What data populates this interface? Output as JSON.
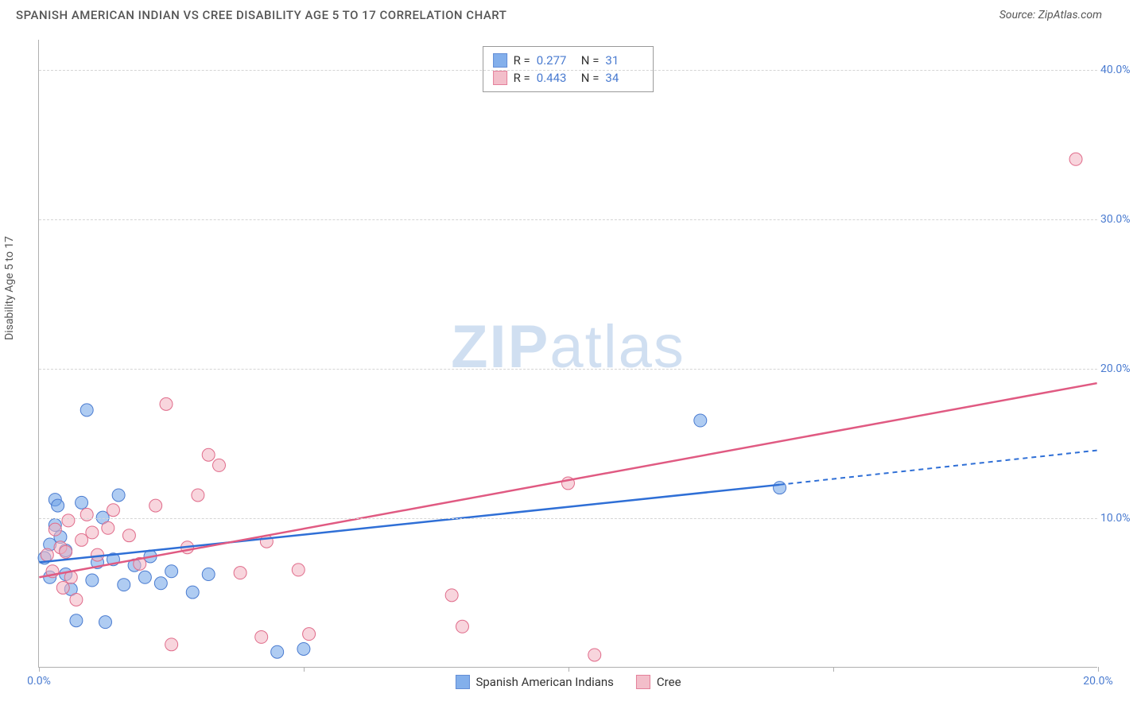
{
  "header": {
    "title": "SPANISH AMERICAN INDIAN VS CREE DISABILITY AGE 5 TO 17 CORRELATION CHART",
    "source": "Source: ZipAtlas.com"
  },
  "watermark": {
    "zip": "ZIP",
    "atlas": "atlas"
  },
  "chart": {
    "type": "scatter",
    "y_axis_label": "Disability Age 5 to 17",
    "background_color": "#ffffff",
    "grid_color": "#d5d5d5",
    "axis_color": "#b0b0b0",
    "tick_label_color": "#4a7bd0",
    "xlim": [
      0,
      20
    ],
    "ylim": [
      0,
      42
    ],
    "x_ticks": [
      0,
      5,
      10,
      15,
      20
    ],
    "x_tick_labels": [
      "0.0%",
      "",
      "",
      "",
      "20.0%"
    ],
    "y_ticks": [
      10,
      20,
      30,
      40
    ],
    "y_tick_labels": [
      "10.0%",
      "20.0%",
      "30.0%",
      "40.0%"
    ],
    "marker_radius": 8,
    "marker_opacity": 0.55,
    "line_width": 2.5,
    "series": [
      {
        "name": "Spanish American Indians",
        "color": "#6ea2e8",
        "stroke": "#4a7bd0",
        "line_color": "#2f6fd6",
        "R": "0.277",
        "N": "31",
        "points": [
          [
            0.1,
            7.3
          ],
          [
            0.2,
            6.0
          ],
          [
            0.2,
            8.2
          ],
          [
            0.3,
            11.2
          ],
          [
            0.3,
            9.5
          ],
          [
            0.35,
            10.8
          ],
          [
            0.4,
            8.7
          ],
          [
            0.5,
            6.2
          ],
          [
            0.5,
            7.8
          ],
          [
            0.6,
            5.2
          ],
          [
            0.7,
            3.1
          ],
          [
            0.8,
            11.0
          ],
          [
            0.9,
            17.2
          ],
          [
            1.0,
            5.8
          ],
          [
            1.1,
            7.0
          ],
          [
            1.2,
            10.0
          ],
          [
            1.25,
            3.0
          ],
          [
            1.4,
            7.2
          ],
          [
            1.5,
            11.5
          ],
          [
            1.6,
            5.5
          ],
          [
            1.8,
            6.8
          ],
          [
            2.0,
            6.0
          ],
          [
            2.1,
            7.4
          ],
          [
            2.3,
            5.6
          ],
          [
            2.5,
            6.4
          ],
          [
            2.9,
            5.0
          ],
          [
            3.2,
            6.2
          ],
          [
            4.5,
            1.0
          ],
          [
            5.0,
            1.2
          ],
          [
            12.5,
            16.5
          ],
          [
            14.0,
            12.0
          ]
        ],
        "trend": {
          "x1": 0,
          "y1": 7.0,
          "x2": 14,
          "y2": 12.2
        },
        "trend_dashed": {
          "x1": 14,
          "y1": 12.2,
          "x2": 20,
          "y2": 14.5
        }
      },
      {
        "name": "Cree",
        "color": "#f2b3c1",
        "stroke": "#e06b8a",
        "line_color": "#e05a82",
        "R": "0.443",
        "N": "34",
        "points": [
          [
            0.15,
            7.5
          ],
          [
            0.25,
            6.4
          ],
          [
            0.3,
            9.2
          ],
          [
            0.4,
            8.0
          ],
          [
            0.45,
            5.3
          ],
          [
            0.5,
            7.7
          ],
          [
            0.55,
            9.8
          ],
          [
            0.6,
            6.0
          ],
          [
            0.7,
            4.5
          ],
          [
            0.8,
            8.5
          ],
          [
            0.9,
            10.2
          ],
          [
            1.0,
            9.0
          ],
          [
            1.1,
            7.5
          ],
          [
            1.3,
            9.3
          ],
          [
            1.4,
            10.5
          ],
          [
            1.7,
            8.8
          ],
          [
            1.9,
            6.9
          ],
          [
            2.2,
            10.8
          ],
          [
            2.4,
            17.6
          ],
          [
            2.5,
            1.5
          ],
          [
            2.8,
            8.0
          ],
          [
            3.0,
            11.5
          ],
          [
            3.2,
            14.2
          ],
          [
            3.4,
            13.5
          ],
          [
            3.8,
            6.3
          ],
          [
            4.2,
            2.0
          ],
          [
            4.3,
            8.4
          ],
          [
            4.9,
            6.5
          ],
          [
            5.1,
            2.2
          ],
          [
            7.8,
            4.8
          ],
          [
            8.0,
            2.7
          ],
          [
            10.0,
            12.3
          ],
          [
            10.5,
            0.8
          ],
          [
            19.6,
            34.0
          ]
        ],
        "trend": {
          "x1": 0,
          "y1": 6.0,
          "x2": 20,
          "y2": 19.0
        }
      }
    ],
    "stats_box": {
      "r_label": "R =",
      "n_label": "N ="
    },
    "legend": {
      "series1": "Spanish American Indians",
      "series2": "Cree"
    }
  }
}
